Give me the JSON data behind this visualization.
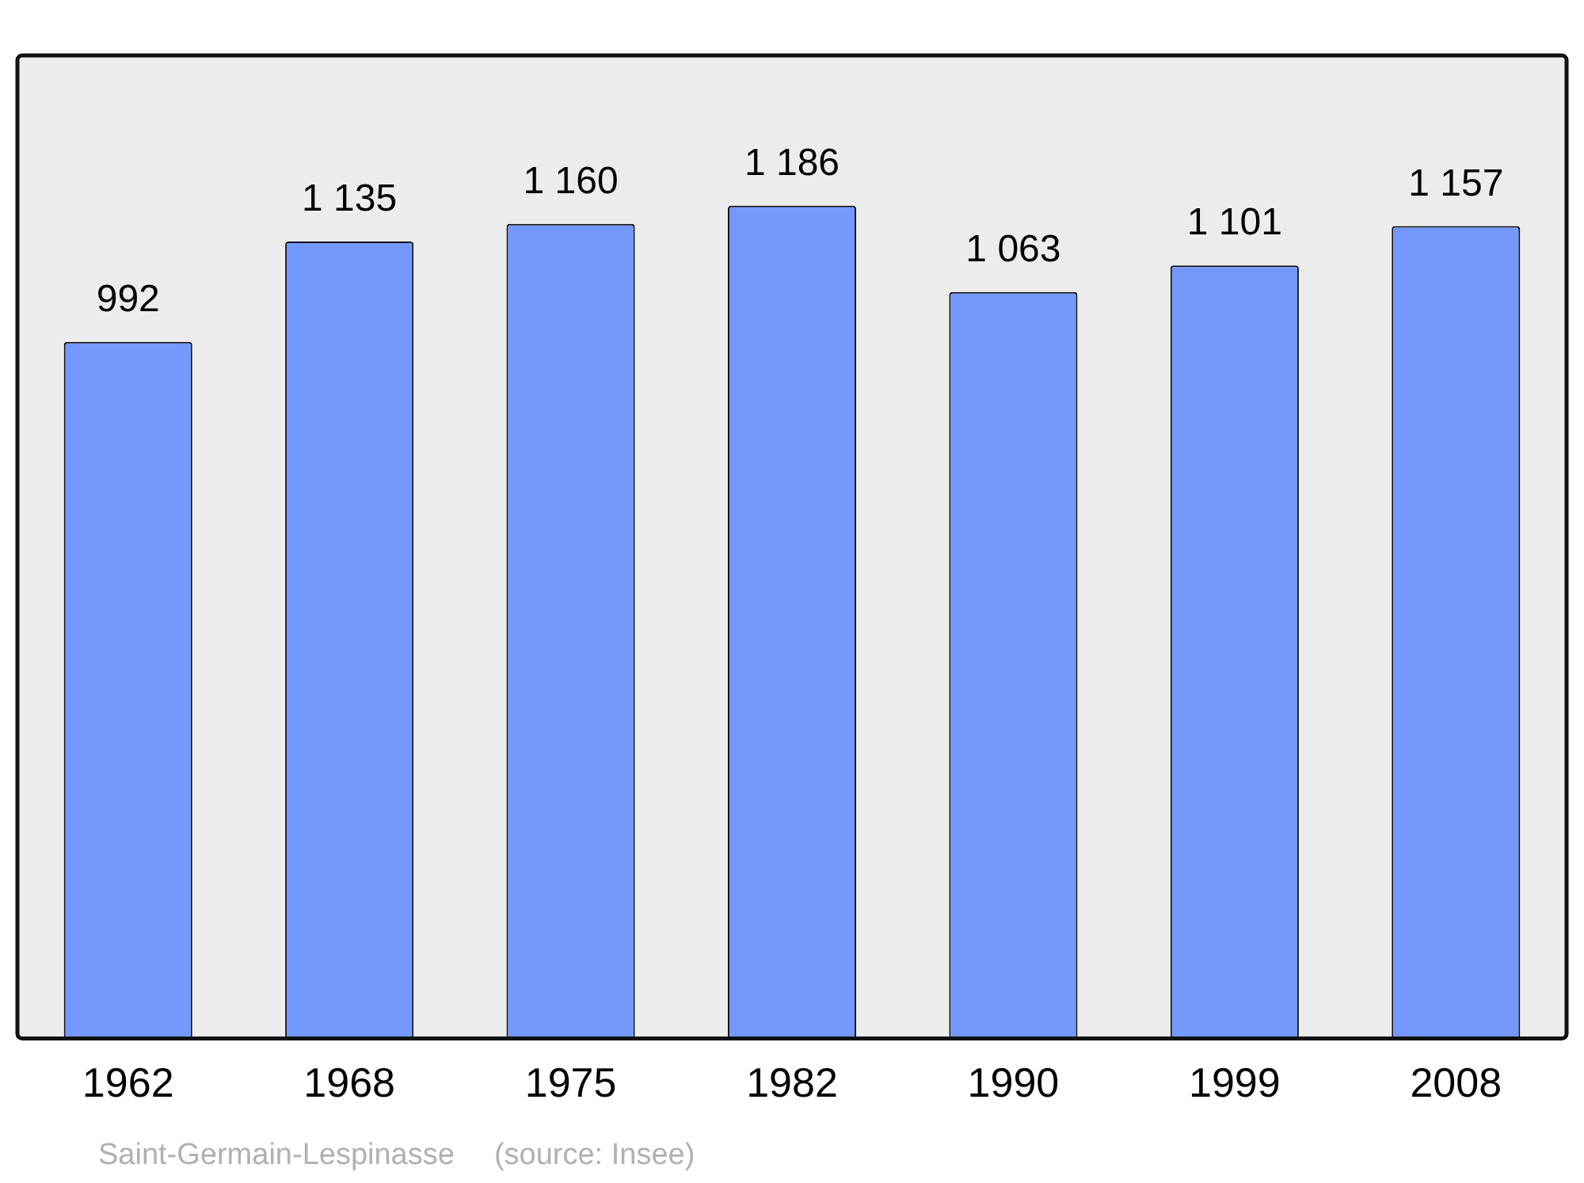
{
  "chart_data": {
    "type": "bar",
    "categories": [
      "1962",
      "1968",
      "1975",
      "1982",
      "1990",
      "1999",
      "2008"
    ],
    "values": [
      992,
      1135,
      1160,
      1186,
      1063,
      1101,
      1157
    ],
    "value_labels": [
      "992",
      "1 135",
      "1 160",
      "1 186",
      "1 063",
      "1 101",
      "1 157"
    ],
    "color": "#7399ff",
    "annotations": [
      "Saint-Germain-Lespinasse",
      "(source: Insee)"
    ]
  }
}
